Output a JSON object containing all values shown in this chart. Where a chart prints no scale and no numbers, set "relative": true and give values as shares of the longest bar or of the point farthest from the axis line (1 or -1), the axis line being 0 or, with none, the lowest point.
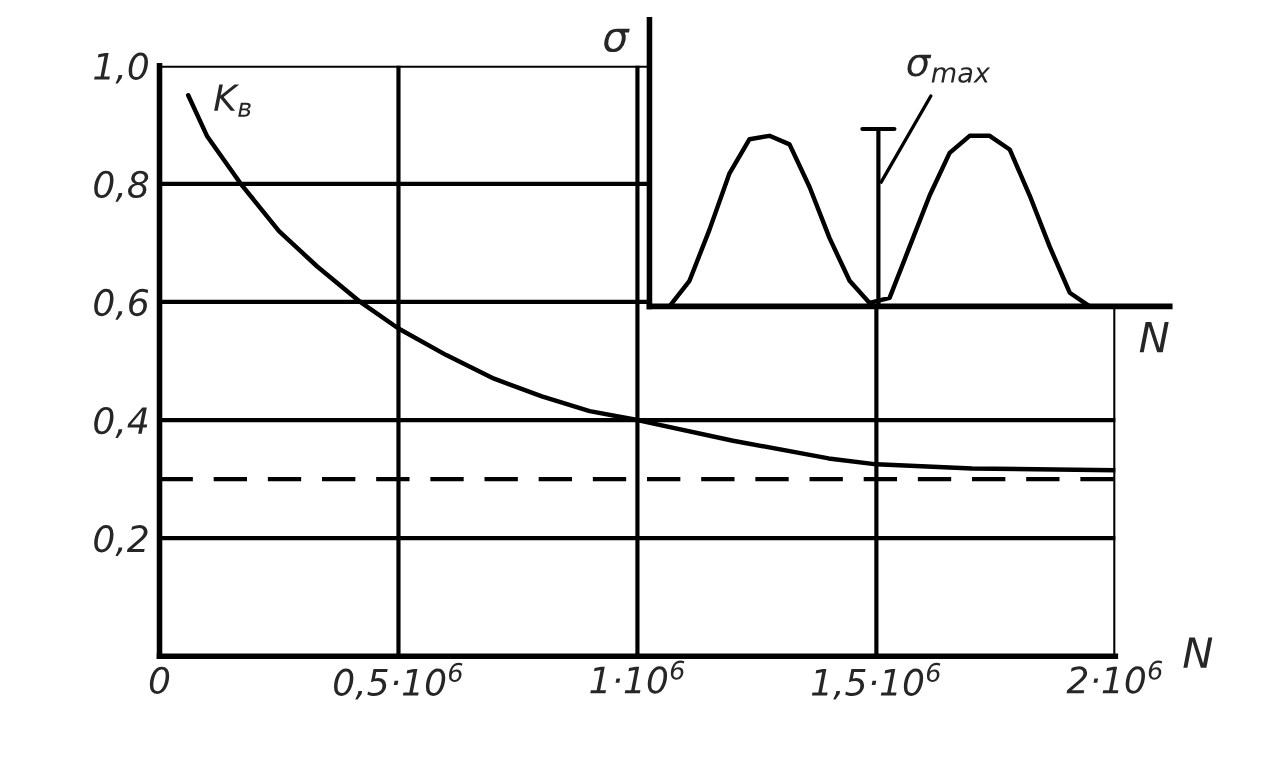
{
  "chart_data": [
    {
      "type": "line",
      "xlabel": "N",
      "xlim": [
        0,
        2000000
      ],
      "ylim": [
        0,
        1.0
      ],
      "grid": true,
      "marker": "none",
      "line_style": "solid",
      "xticks": [
        0,
        {
          "value": 500000,
          "label": "0,5·10$^{6}$"
        },
        {
          "value": 1000000,
          "label": "1·10$^{6}$"
        },
        {
          "value": 1500000,
          "label": "1,5·10$^{6}$"
        },
        {
          "value": 2000000,
          "label": "2·10$^{6}$"
        }
      ],
      "yticks": [
        {
          "value": 0.2,
          "label": "0,2"
        },
        {
          "value": 0.4,
          "label": "0,4"
        },
        {
          "value": 0.6,
          "label": "0,6"
        },
        {
          "value": 0.8,
          "label": "0,8"
        },
        {
          "value": 1.0,
          "label": "1,0"
        }
      ],
      "ref_lines": [
        {
          "axis": "y",
          "value": 0.3,
          "line_style": "dashed",
          "color": "#000000"
        }
      ],
      "series": [
        {
          "name": "K$_{в}$",
          "color": "#000000",
          "x": [
            60000,
            100000,
            170000,
            250000,
            330000,
            420000,
            500000,
            600000,
            700000,
            800000,
            900000,
            1000000,
            1200000,
            1400000,
            1500000,
            1700000,
            2000000
          ],
          "values": [
            0.95,
            0.88,
            0.8,
            0.72,
            0.66,
            0.6,
            0.555,
            0.51,
            0.47,
            0.44,
            0.415,
            0.4,
            0.365,
            0.335,
            0.325,
            0.318,
            0.315
          ]
        }
      ]
    },
    {
      "type": "line",
      "relative": true,
      "xlabel": "N",
      "ylabel": "σ",
      "marker": "none",
      "line_style": "solid",
      "annotations": [
        "σ$_{max}$"
      ],
      "categories": [
        null,
        null,
        null,
        null,
        null,
        null,
        null,
        null,
        null,
        null,
        null,
        null,
        null,
        null,
        null,
        null,
        null,
        null,
        null,
        null,
        null,
        null,
        null,
        null,
        null,
        null,
        null
      ],
      "series": [
        {
          "color": "#000000",
          "values": [
            0,
            0,
            0.15,
            0.45,
            0.78,
            0.98,
            1.0,
            0.95,
            0.7,
            0.4,
            0.15,
            0.02,
            0.05,
            0.35,
            0.65,
            0.9,
            1.0,
            1.0,
            0.92,
            0.65,
            0.35,
            0.08,
            0,
            0,
            0,
            0,
            0
          ]
        }
      ]
    }
  ]
}
